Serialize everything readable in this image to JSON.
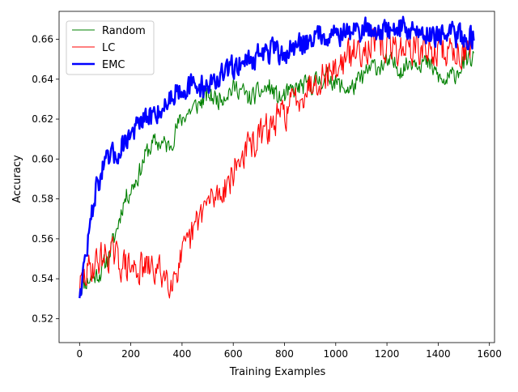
{
  "chart_data": {
    "type": "line",
    "title": "",
    "xlabel": "Training Examples",
    "ylabel": "Accuracy",
    "xlim": [
      -80,
      1620
    ],
    "ylim": [
      0.508,
      0.674
    ],
    "xticks": [
      0,
      200,
      400,
      600,
      800,
      1000,
      1200,
      1400,
      1600
    ],
    "yticks": [
      0.52,
      0.54,
      0.56,
      0.58,
      0.6,
      0.62,
      0.64,
      0.66
    ],
    "grid": false,
    "legend_position": "top-left",
    "series": [
      {
        "name": "Random",
        "color": "#008000",
        "noise": 0.0045,
        "points": [
          [
            0,
            0.536
          ],
          [
            40,
            0.54
          ],
          [
            80,
            0.543
          ],
          [
            110,
            0.55
          ],
          [
            140,
            0.562
          ],
          [
            170,
            0.578
          ],
          [
            200,
            0.585
          ],
          [
            230,
            0.592
          ],
          [
            260,
            0.603
          ],
          [
            290,
            0.608
          ],
          [
            320,
            0.608
          ],
          [
            350,
            0.606
          ],
          [
            380,
            0.616
          ],
          [
            410,
            0.622
          ],
          [
            440,
            0.625
          ],
          [
            470,
            0.628
          ],
          [
            500,
            0.632
          ],
          [
            540,
            0.63
          ],
          [
            580,
            0.634
          ],
          [
            620,
            0.636
          ],
          [
            660,
            0.63
          ],
          [
            700,
            0.633
          ],
          [
            740,
            0.636
          ],
          [
            780,
            0.63
          ],
          [
            820,
            0.633
          ],
          [
            860,
            0.636
          ],
          [
            900,
            0.637
          ],
          [
            940,
            0.64
          ],
          [
            980,
            0.641
          ],
          [
            1020,
            0.636
          ],
          [
            1060,
            0.635
          ],
          [
            1100,
            0.64
          ],
          [
            1140,
            0.646
          ],
          [
            1180,
            0.647
          ],
          [
            1220,
            0.648
          ],
          [
            1260,
            0.645
          ],
          [
            1300,
            0.65
          ],
          [
            1340,
            0.649
          ],
          [
            1380,
            0.645
          ],
          [
            1420,
            0.638
          ],
          [
            1460,
            0.642
          ],
          [
            1500,
            0.648
          ],
          [
            1540,
            0.651
          ]
        ]
      },
      {
        "name": "LC",
        "color": "#ff0000",
        "noise": 0.0075,
        "points": [
          [
            0,
            0.536
          ],
          [
            40,
            0.545
          ],
          [
            80,
            0.55
          ],
          [
            120,
            0.553
          ],
          [
            160,
            0.548
          ],
          [
            200,
            0.545
          ],
          [
            240,
            0.545
          ],
          [
            280,
            0.545
          ],
          [
            320,
            0.543
          ],
          [
            360,
            0.54
          ],
          [
            390,
            0.548
          ],
          [
            420,
            0.555
          ],
          [
            450,
            0.565
          ],
          [
            480,
            0.575
          ],
          [
            520,
            0.58
          ],
          [
            560,
            0.585
          ],
          [
            600,
            0.593
          ],
          [
            640,
            0.603
          ],
          [
            680,
            0.608
          ],
          [
            720,
            0.613
          ],
          [
            760,
            0.618
          ],
          [
            800,
            0.623
          ],
          [
            840,
            0.63
          ],
          [
            880,
            0.635
          ],
          [
            920,
            0.64
          ],
          [
            960,
            0.643
          ],
          [
            1000,
            0.645
          ],
          [
            1040,
            0.65
          ],
          [
            1080,
            0.654
          ],
          [
            1120,
            0.657
          ],
          [
            1160,
            0.657
          ],
          [
            1200,
            0.656
          ],
          [
            1240,
            0.655
          ],
          [
            1280,
            0.656
          ],
          [
            1320,
            0.655
          ],
          [
            1360,
            0.654
          ],
          [
            1400,
            0.654
          ],
          [
            1440,
            0.654
          ],
          [
            1480,
            0.654
          ],
          [
            1520,
            0.654
          ],
          [
            1540,
            0.653
          ]
        ]
      },
      {
        "name": "EMC",
        "color": "#0000ff",
        "noise": 0.0055,
        "points": [
          [
            0,
            0.533
          ],
          [
            20,
            0.548
          ],
          [
            40,
            0.565
          ],
          [
            60,
            0.583
          ],
          [
            90,
            0.595
          ],
          [
            120,
            0.6
          ],
          [
            150,
            0.603
          ],
          [
            180,
            0.61
          ],
          [
            210,
            0.614
          ],
          [
            240,
            0.618
          ],
          [
            270,
            0.62
          ],
          [
            300,
            0.624
          ],
          [
            330,
            0.626
          ],
          [
            360,
            0.632
          ],
          [
            390,
            0.636
          ],
          [
            430,
            0.636
          ],
          [
            470,
            0.636
          ],
          [
            510,
            0.638
          ],
          [
            550,
            0.641
          ],
          [
            590,
            0.645
          ],
          [
            630,
            0.649
          ],
          [
            670,
            0.65
          ],
          [
            710,
            0.653
          ],
          [
            750,
            0.654
          ],
          [
            790,
            0.652
          ],
          [
            830,
            0.655
          ],
          [
            870,
            0.658
          ],
          [
            910,
            0.661
          ],
          [
            950,
            0.663
          ],
          [
            990,
            0.663
          ],
          [
            1030,
            0.663
          ],
          [
            1070,
            0.664
          ],
          [
            1110,
            0.665
          ],
          [
            1150,
            0.665
          ],
          [
            1190,
            0.664
          ],
          [
            1230,
            0.665
          ],
          [
            1270,
            0.666
          ],
          [
            1310,
            0.664
          ],
          [
            1350,
            0.663
          ],
          [
            1390,
            0.663
          ],
          [
            1430,
            0.662
          ],
          [
            1470,
            0.662
          ],
          [
            1510,
            0.661
          ],
          [
            1540,
            0.661
          ]
        ]
      }
    ]
  }
}
